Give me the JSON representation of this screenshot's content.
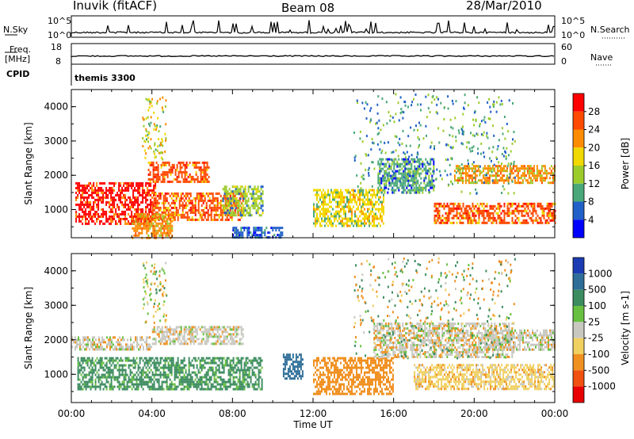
{
  "header": {
    "station": "Inuvik (fitACF)",
    "beam": "Beam 08",
    "date": "28/Mar/2010"
  },
  "top_panels": {
    "nsky_label": "N.Sky",
    "nsky_ticks": [
      "10^5",
      "10^0"
    ],
    "nsearch_label": "N.Search",
    "nsearch_ticks": [
      "10^5",
      "10^0"
    ],
    "freq_label": "Freq.",
    "freq_unit": "[MHz]",
    "freq_ticks": [
      "18",
      "8"
    ],
    "nave_label": "Nave",
    "nave_ticks": [
      "60",
      "0"
    ],
    "cpid_label": "CPID",
    "cpid_value": "themis 3300"
  },
  "chart_data": [
    {
      "type": "heatmap",
      "quantity": "Power",
      "ylabel": "Slant Range [km]",
      "ylim": [
        180,
        4500
      ],
      "yticks": [
        1000,
        2000,
        3000,
        4000
      ],
      "xlim_hours": [
        0,
        24
      ],
      "colorbar_label": "Power [dB]",
      "colorbar_ticks": [
        "28",
        "24",
        "20",
        "16",
        "12",
        "8",
        "4"
      ],
      "colorbar_colors": [
        "#ff0000",
        "#ff4a00",
        "#ff8c00",
        "#f0d800",
        "#9ccc2c",
        "#4aa878",
        "#2060c8",
        "#0000ff"
      ],
      "regions": [
        {
          "x": [
            0.2,
            4.2
          ],
          "y": [
            600,
            1800
          ],
          "level": 28
        },
        {
          "x": [
            3.8,
            6.8
          ],
          "y": [
            1800,
            2400
          ],
          "level": 26
        },
        {
          "x": [
            4.0,
            8.5
          ],
          "y": [
            700,
            1500
          ],
          "level": 24
        },
        {
          "x": [
            3.0,
            5.0
          ],
          "y": [
            200,
            900
          ],
          "level": 22
        },
        {
          "x": [
            7.5,
            9.5
          ],
          "y": [
            800,
            1700
          ],
          "level": 14
        },
        {
          "x": [
            15.2,
            18.0
          ],
          "y": [
            1500,
            2500
          ],
          "level": 10
        },
        {
          "x": [
            19.0,
            24.0
          ],
          "y": [
            1800,
            2300
          ],
          "level": 20
        },
        {
          "x": [
            18.0,
            24.0
          ],
          "y": [
            600,
            1200
          ],
          "level": 26
        },
        {
          "x": [
            12.0,
            15.5
          ],
          "y": [
            500,
            1600
          ],
          "level": 18
        },
        {
          "x": [
            8.0,
            10.5
          ],
          "y": [
            200,
            500
          ],
          "level": 6
        }
      ]
    },
    {
      "type": "heatmap",
      "quantity": "Velocity",
      "ylabel": "Slant Range [km]",
      "ylim": [
        180,
        4500
      ],
      "yticks": [
        1000,
        2000,
        3000,
        4000
      ],
      "xlim_hours": [
        0,
        24
      ],
      "xlabel": "Time UT",
      "xticks": [
        "00:00",
        "04:00",
        "08:00",
        "12:00",
        "16:00",
        "20:00",
        "00:00"
      ],
      "colorbar_label": "Velocity [m s-1]",
      "colorbar_ticks": [
        "1000",
        "500",
        "100",
        "25",
        "-25",
        "-100",
        "-500",
        "-1000"
      ],
      "colorbar_colors": [
        "#1c3cb4",
        "#2e6e98",
        "#3c8c60",
        "#68c040",
        "#c8c8c0",
        "#f0d060",
        "#f09020",
        "#f05010",
        "#e80000"
      ],
      "regions": [
        {
          "x": [
            0.3,
            9.5
          ],
          "y": [
            600,
            1500
          ],
          "level": 200
        },
        {
          "x": [
            0.0,
            4.0
          ],
          "y": [
            1700,
            2100
          ],
          "level": 0
        },
        {
          "x": [
            4.0,
            8.5
          ],
          "y": [
            1900,
            2400
          ],
          "level": 0
        },
        {
          "x": [
            12.0,
            16.0
          ],
          "y": [
            400,
            1500
          ],
          "level": -200
        },
        {
          "x": [
            15.0,
            22.0
          ],
          "y": [
            1500,
            2500
          ],
          "level": 0
        },
        {
          "x": [
            17.0,
            24.0
          ],
          "y": [
            600,
            1300
          ],
          "level": -100
        },
        {
          "x": [
            20.5,
            24.0
          ],
          "y": [
            1700,
            2300
          ],
          "level": 0
        },
        {
          "x": [
            10.5,
            11.5
          ],
          "y": [
            900,
            1600
          ],
          "level": 800
        }
      ]
    }
  ]
}
